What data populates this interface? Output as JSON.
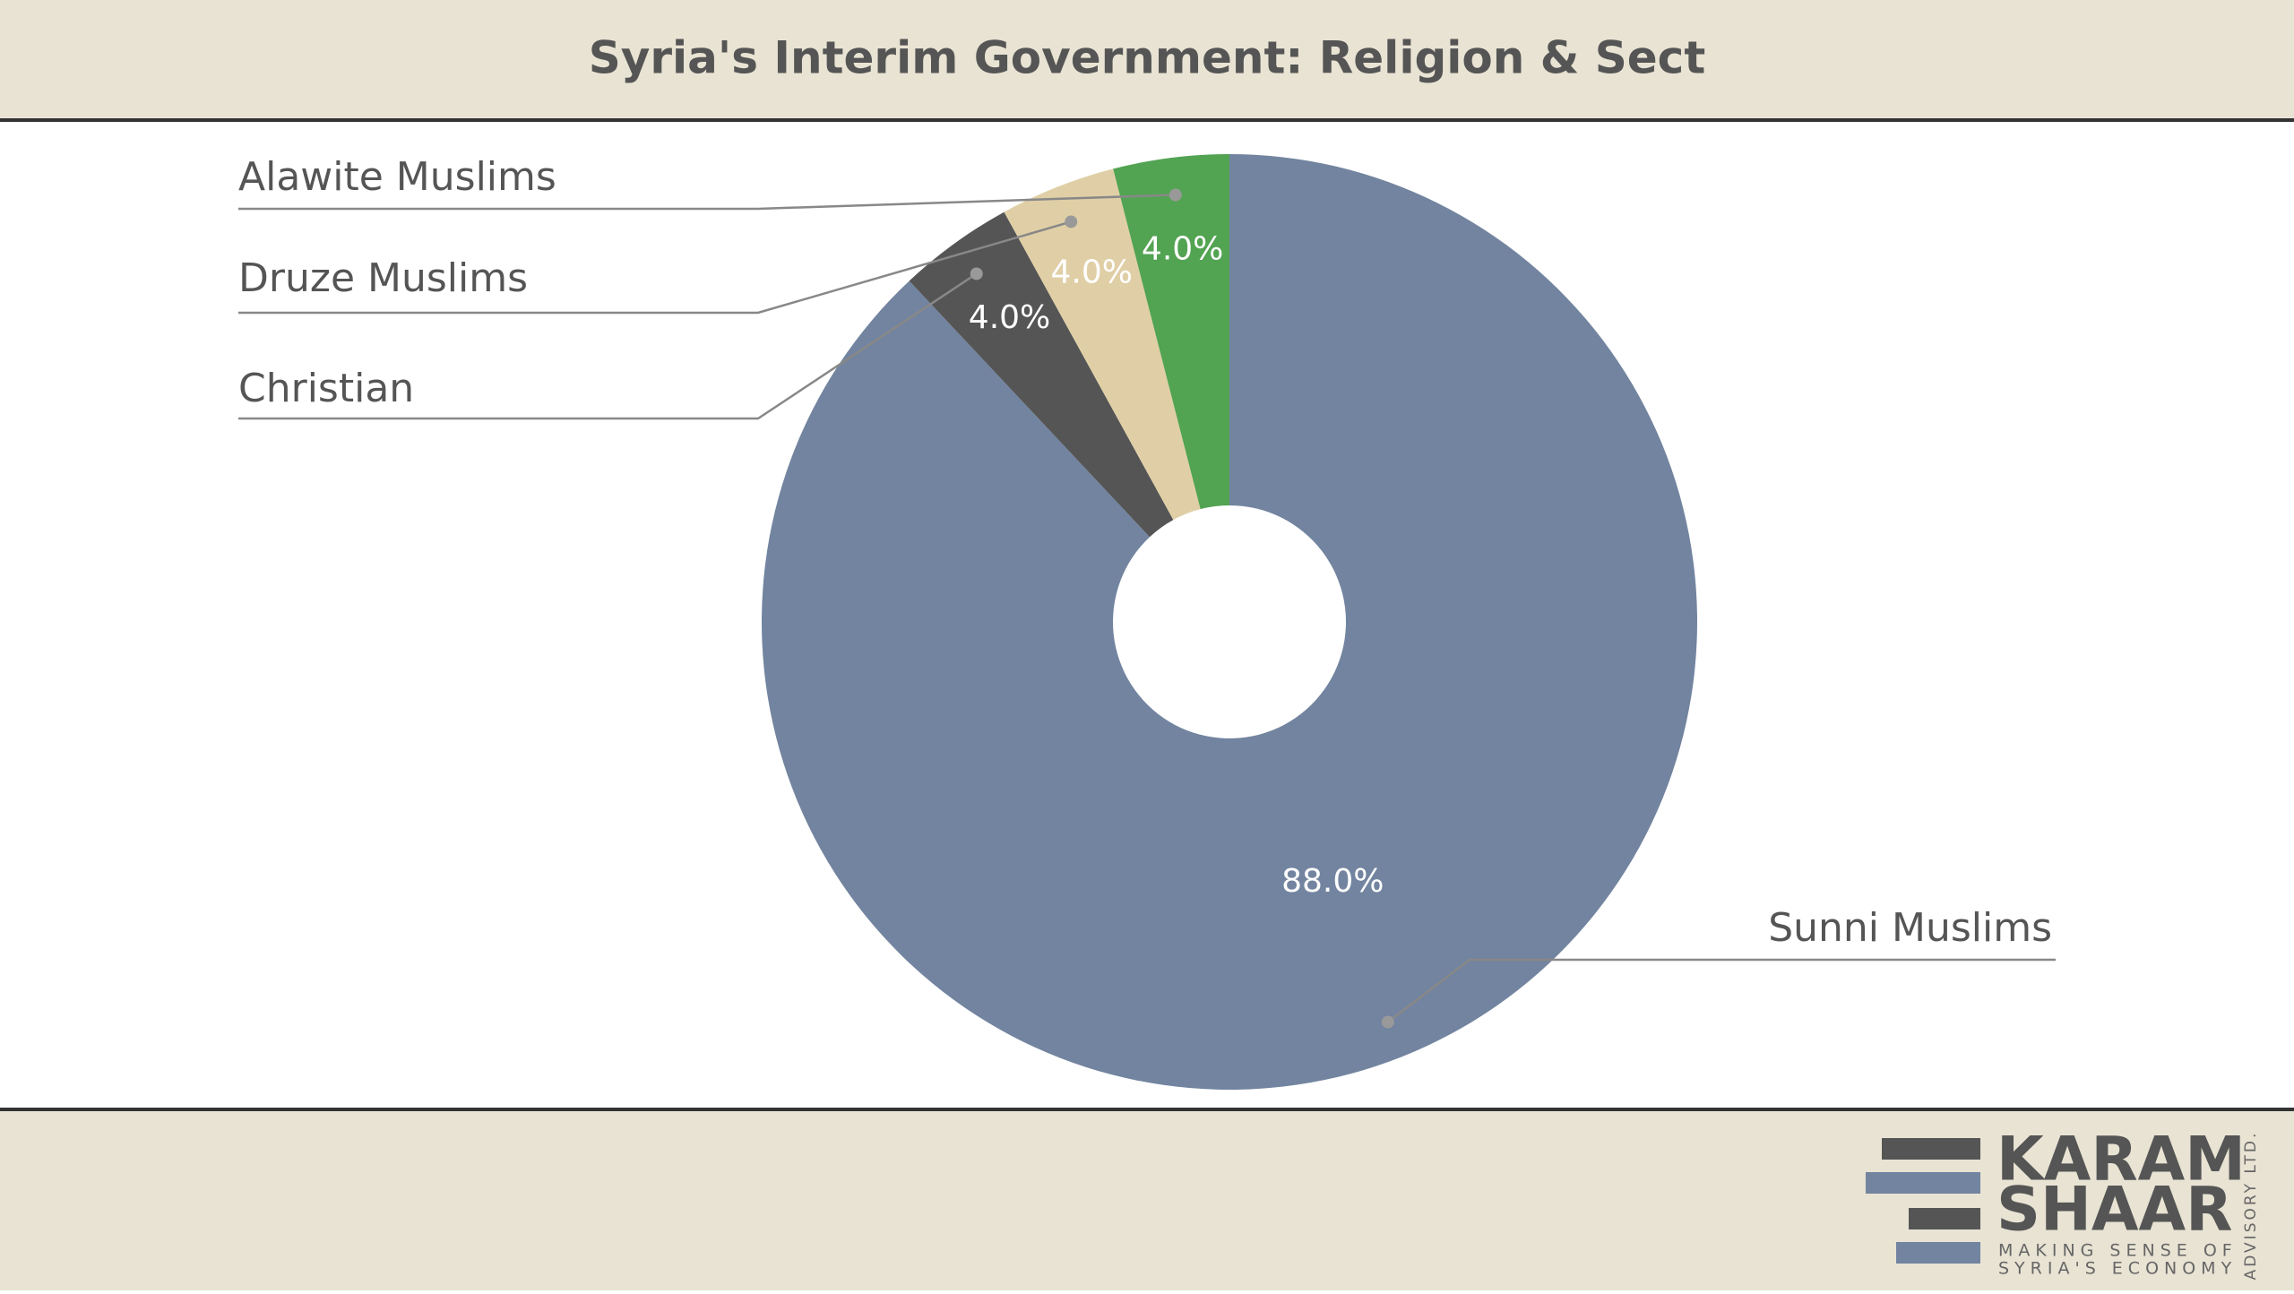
{
  "chart_data": {
    "type": "donut",
    "title": "Syria's Interim Government: Religion & Sect",
    "categories": [
      "Sunni Muslims",
      "Christian",
      "Druze Muslims",
      "Alawite Muslims"
    ],
    "values": [
      88,
      4,
      4,
      4
    ],
    "value_labels": [
      "88.0%",
      "4.0%",
      "4.0%",
      "4.0%"
    ],
    "colors": [
      "#72849f",
      "#555555",
      "#e0cfa6",
      "#52a352"
    ]
  },
  "logo": {
    "line1": "KARAM",
    "line2": "SHAAR",
    "tagline1": "MAKING SENSE OF",
    "tagline2": "SYRIA'S ECONOMY",
    "side": "ADVISORY LTD."
  }
}
